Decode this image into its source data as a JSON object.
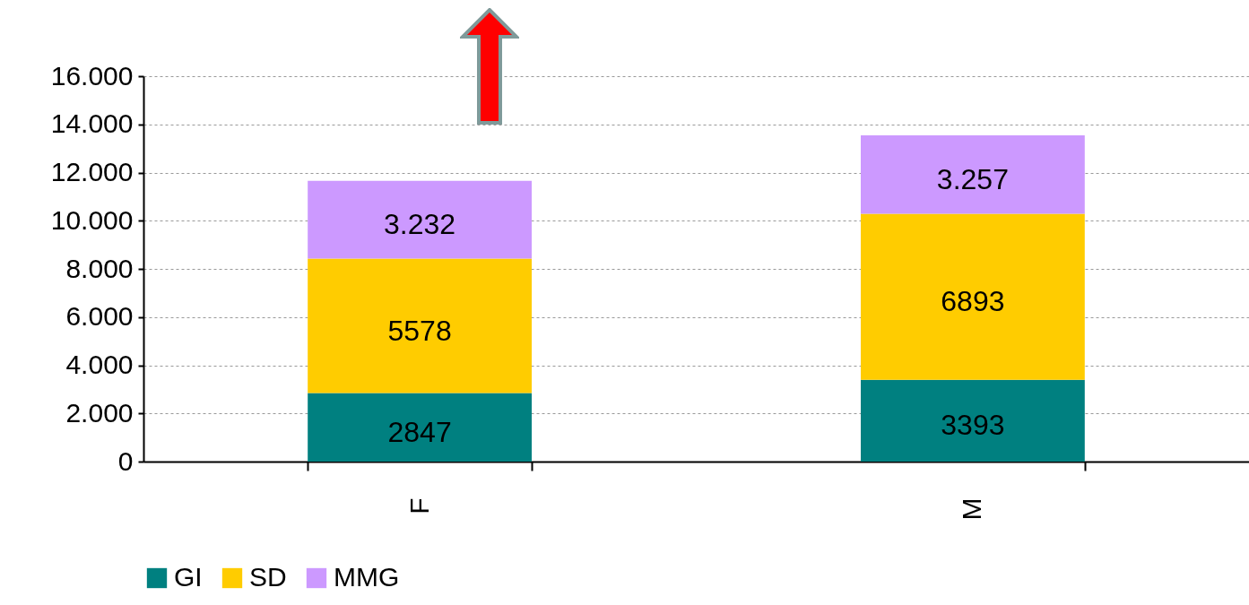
{
  "chart_data": {
    "type": "bar",
    "stacked": true,
    "categories": [
      "F",
      "M"
    ],
    "series": [
      {
        "name": "GI",
        "color": "#008080",
        "values": [
          2847,
          3393
        ],
        "value_labels": [
          "2847",
          "3393"
        ]
      },
      {
        "name": "SD",
        "color": "#ffcc00",
        "values": [
          5578,
          6893
        ],
        "value_labels": [
          "5578",
          "6893"
        ]
      },
      {
        "name": "MMG",
        "color": "#cc99ff",
        "values": [
          3232,
          3257
        ],
        "value_labels": [
          "3.232",
          "3.257"
        ]
      }
    ],
    "ylim": [
      0,
      16000
    ],
    "yticks": [
      {
        "value": 0,
        "label": "0"
      },
      {
        "value": 2000,
        "label": "2.000"
      },
      {
        "value": 4000,
        "label": "4.000"
      },
      {
        "value": 6000,
        "label": "6.000"
      },
      {
        "value": 8000,
        "label": "8.000"
      },
      {
        "value": 10000,
        "label": "10.000"
      },
      {
        "value": 12000,
        "label": "12.000"
      },
      {
        "value": 14000,
        "label": "14.000"
      },
      {
        "value": 16000,
        "label": "16.000"
      }
    ],
    "grid": "y",
    "legend": "bottom"
  }
}
